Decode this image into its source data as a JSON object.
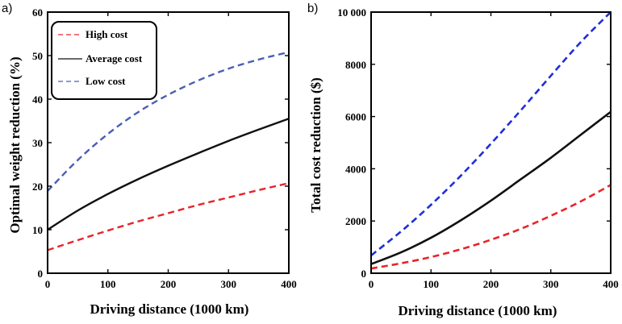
{
  "chart_data": [
    {
      "panel_label": "a)",
      "type": "line",
      "xlabel": "Driving distance (1000 km)",
      "ylabel": "Optimal  weight  reduction  (%)",
      "xlim": [
        0,
        400
      ],
      "ylim": [
        0,
        60
      ],
      "xticks": [
        0,
        100,
        200,
        300,
        400
      ],
      "yticks": [
        0,
        10,
        20,
        30,
        40,
        50,
        60
      ],
      "ytick_labels": [
        "0",
        "10",
        "20",
        "30",
        "40",
        "50",
        "60"
      ],
      "legend_position": "top-left",
      "series": [
        {
          "name": "High cost",
          "color": "#e8242a",
          "dash": "dashed",
          "x": [
            0,
            50,
            100,
            150,
            200,
            250,
            300,
            350,
            400
          ],
          "y": [
            5.3,
            7.6,
            9.8,
            11.9,
            13.8,
            15.7,
            17.4,
            19.1,
            20.7
          ]
        },
        {
          "name": "Average cost",
          "color": "#111111",
          "dash": "solid",
          "x": [
            0,
            50,
            100,
            150,
            200,
            250,
            300,
            350,
            400
          ],
          "y": [
            10.0,
            14.4,
            18.2,
            21.6,
            24.7,
            27.6,
            30.4,
            33.0,
            35.5
          ]
        },
        {
          "name": "Low cost",
          "color": "#4a5fb3",
          "dash": "dashed",
          "x": [
            0,
            50,
            100,
            150,
            200,
            250,
            300,
            350,
            400
          ],
          "y": [
            18.9,
            26.0,
            32.0,
            37.0,
            41.0,
            44.3,
            47.0,
            49.1,
            50.8
          ]
        }
      ]
    },
    {
      "panel_label": "b)",
      "type": "line",
      "xlabel": "Driving distance (1000 km)",
      "ylabel": "Total  cost reduction  ($)",
      "xlim": [
        0,
        400
      ],
      "ylim": [
        0,
        10000
      ],
      "xticks": [
        0,
        100,
        200,
        300,
        400
      ],
      "yticks": [
        0,
        2000,
        4000,
        6000,
        8000,
        10000
      ],
      "ytick_labels": [
        "0",
        "2000",
        "4000",
        "6000",
        "8000",
        "10 000"
      ],
      "series": [
        {
          "name": "",
          "color": "#e8242a",
          "dash": "dashed",
          "x": [
            0,
            50,
            100,
            150,
            200,
            250,
            300,
            350,
            400
          ],
          "y": [
            180,
            380,
            620,
            920,
            1280,
            1700,
            2200,
            2750,
            3380
          ]
        },
        {
          "name": "",
          "color": "#111111",
          "dash": "solid",
          "x": [
            0,
            50,
            100,
            150,
            200,
            250,
            300,
            350,
            400
          ],
          "y": [
            350,
            800,
            1360,
            2030,
            2780,
            3600,
            4420,
            5300,
            6180
          ]
        },
        {
          "name": "",
          "color": "#1f2fd6",
          "dash": "dashed",
          "x": [
            0,
            50,
            100,
            150,
            200,
            250,
            300,
            350,
            400
          ],
          "y": [
            680,
            1600,
            2620,
            3740,
            4960,
            6240,
            7560,
            8850,
            10000
          ]
        }
      ]
    }
  ]
}
